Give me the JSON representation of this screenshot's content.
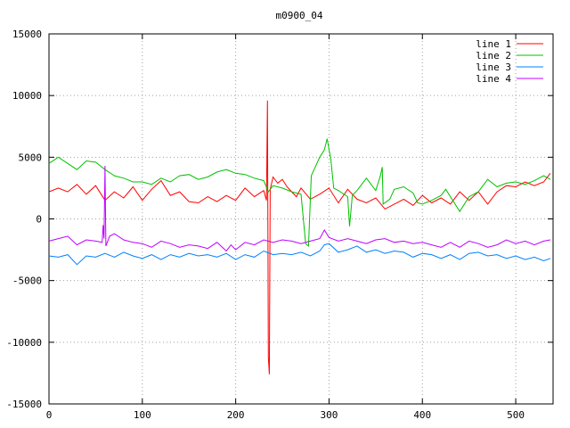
{
  "chart_data": {
    "type": "line",
    "title": "m0900_04",
    "xlabel": "",
    "ylabel": "",
    "xlim": [
      0,
      540
    ],
    "ylim": [
      -15000,
      15000
    ],
    "xticks": [
      0,
      100,
      200,
      300,
      400,
      500
    ],
    "yticks": [
      -15000,
      -10000,
      -5000,
      0,
      5000,
      10000,
      15000
    ],
    "grid": true,
    "legend_position": "top-right",
    "series": [
      {
        "name": "line 1",
        "color": "#ff0000",
        "points": [
          [
            0,
            2200
          ],
          [
            10,
            2500
          ],
          [
            20,
            2200
          ],
          [
            30,
            2800
          ],
          [
            40,
            2000
          ],
          [
            50,
            2700
          ],
          [
            60,
            1500
          ],
          [
            70,
            2200
          ],
          [
            80,
            1700
          ],
          [
            90,
            2600
          ],
          [
            100,
            1500
          ],
          [
            110,
            2400
          ],
          [
            120,
            3100
          ],
          [
            130,
            1900
          ],
          [
            140,
            2200
          ],
          [
            150,
            1400
          ],
          [
            160,
            1300
          ],
          [
            170,
            1800
          ],
          [
            180,
            1400
          ],
          [
            190,
            1900
          ],
          [
            200,
            1500
          ],
          [
            210,
            2500
          ],
          [
            220,
            1800
          ],
          [
            230,
            2300
          ],
          [
            233,
            1500
          ],
          [
            234,
            9600
          ],
          [
            235,
            -11200
          ],
          [
            236,
            -12600
          ],
          [
            237,
            2400
          ],
          [
            240,
            3400
          ],
          [
            245,
            2900
          ],
          [
            250,
            3200
          ],
          [
            255,
            2600
          ],
          [
            260,
            2200
          ],
          [
            265,
            1800
          ],
          [
            270,
            2500
          ],
          [
            280,
            1600
          ],
          [
            290,
            2000
          ],
          [
            300,
            2500
          ],
          [
            310,
            1300
          ],
          [
            320,
            2400
          ],
          [
            330,
            1600
          ],
          [
            340,
            1300
          ],
          [
            350,
            1700
          ],
          [
            360,
            800
          ],
          [
            370,
            1200
          ],
          [
            380,
            1600
          ],
          [
            390,
            1100
          ],
          [
            400,
            1900
          ],
          [
            410,
            1300
          ],
          [
            420,
            1700
          ],
          [
            430,
            1200
          ],
          [
            440,
            2200
          ],
          [
            450,
            1500
          ],
          [
            460,
            2200
          ],
          [
            470,
            1200
          ],
          [
            480,
            2200
          ],
          [
            490,
            2700
          ],
          [
            500,
            2600
          ],
          [
            510,
            3000
          ],
          [
            520,
            2700
          ],
          [
            530,
            3000
          ],
          [
            537,
            3700
          ]
        ]
      },
      {
        "name": "line 2",
        "color": "#00c000",
        "points": [
          [
            0,
            4500
          ],
          [
            10,
            5000
          ],
          [
            20,
            4500
          ],
          [
            30,
            4000
          ],
          [
            40,
            4700
          ],
          [
            50,
            4600
          ],
          [
            60,
            4000
          ],
          [
            70,
            3500
          ],
          [
            80,
            3300
          ],
          [
            90,
            3000
          ],
          [
            100,
            3000
          ],
          [
            110,
            2800
          ],
          [
            120,
            3300
          ],
          [
            130,
            3000
          ],
          [
            140,
            3500
          ],
          [
            150,
            3600
          ],
          [
            160,
            3200
          ],
          [
            170,
            3400
          ],
          [
            180,
            3800
          ],
          [
            190,
            4000
          ],
          [
            200,
            3700
          ],
          [
            210,
            3600
          ],
          [
            220,
            3300
          ],
          [
            230,
            3100
          ],
          [
            235,
            2200
          ],
          [
            240,
            2700
          ],
          [
            250,
            2500
          ],
          [
            260,
            2200
          ],
          [
            270,
            2000
          ],
          [
            275,
            -2000
          ],
          [
            278,
            -2200
          ],
          [
            281,
            3500
          ],
          [
            290,
            5000
          ],
          [
            295,
            5600
          ],
          [
            298,
            6500
          ],
          [
            302,
            4800
          ],
          [
            305,
            2500
          ],
          [
            310,
            2300
          ],
          [
            320,
            1800
          ],
          [
            322,
            -600
          ],
          [
            325,
            1900
          ],
          [
            330,
            2300
          ],
          [
            340,
            3300
          ],
          [
            350,
            2300
          ],
          [
            355,
            3500
          ],
          [
            357,
            4200
          ],
          [
            358,
            1200
          ],
          [
            365,
            1600
          ],
          [
            370,
            2400
          ],
          [
            380,
            2600
          ],
          [
            390,
            2100
          ],
          [
            395,
            1300
          ],
          [
            400,
            1200
          ],
          [
            410,
            1500
          ],
          [
            420,
            1900
          ],
          [
            425,
            2400
          ],
          [
            430,
            1800
          ],
          [
            440,
            600
          ],
          [
            450,
            1800
          ],
          [
            460,
            2200
          ],
          [
            470,
            3200
          ],
          [
            480,
            2600
          ],
          [
            490,
            2900
          ],
          [
            500,
            3000
          ],
          [
            510,
            2800
          ],
          [
            520,
            3100
          ],
          [
            530,
            3500
          ],
          [
            537,
            3200
          ]
        ]
      },
      {
        "name": "line 3",
        "color": "#0080ff",
        "points": [
          [
            0,
            -3000
          ],
          [
            10,
            -3100
          ],
          [
            20,
            -2900
          ],
          [
            30,
            -3700
          ],
          [
            40,
            -3000
          ],
          [
            50,
            -3100
          ],
          [
            60,
            -2800
          ],
          [
            70,
            -3100
          ],
          [
            80,
            -2700
          ],
          [
            90,
            -3000
          ],
          [
            100,
            -3200
          ],
          [
            110,
            -2900
          ],
          [
            120,
            -3300
          ],
          [
            130,
            -2900
          ],
          [
            140,
            -3100
          ],
          [
            150,
            -2800
          ],
          [
            160,
            -3000
          ],
          [
            170,
            -2900
          ],
          [
            180,
            -3100
          ],
          [
            190,
            -2800
          ],
          [
            200,
            -3300
          ],
          [
            210,
            -2900
          ],
          [
            220,
            -3100
          ],
          [
            230,
            -2600
          ],
          [
            240,
            -2900
          ],
          [
            250,
            -2800
          ],
          [
            260,
            -2900
          ],
          [
            270,
            -2700
          ],
          [
            280,
            -3000
          ],
          [
            290,
            -2600
          ],
          [
            295,
            -2100
          ],
          [
            300,
            -2000
          ],
          [
            310,
            -2700
          ],
          [
            320,
            -2500
          ],
          [
            330,
            -2200
          ],
          [
            340,
            -2700
          ],
          [
            350,
            -2500
          ],
          [
            360,
            -2800
          ],
          [
            370,
            -2600
          ],
          [
            380,
            -2700
          ],
          [
            390,
            -3100
          ],
          [
            400,
            -2800
          ],
          [
            410,
            -2900
          ],
          [
            420,
            -3200
          ],
          [
            430,
            -2900
          ],
          [
            440,
            -3300
          ],
          [
            450,
            -2800
          ],
          [
            460,
            -2700
          ],
          [
            470,
            -3000
          ],
          [
            480,
            -2900
          ],
          [
            490,
            -3200
          ],
          [
            500,
            -3000
          ],
          [
            510,
            -3300
          ],
          [
            520,
            -3100
          ],
          [
            530,
            -3400
          ],
          [
            537,
            -3200
          ]
        ]
      },
      {
        "name": "line 4",
        "color": "#c000ff",
        "points": [
          [
            0,
            -1800
          ],
          [
            10,
            -1600
          ],
          [
            20,
            -1400
          ],
          [
            30,
            -2100
          ],
          [
            40,
            -1700
          ],
          [
            50,
            -1800
          ],
          [
            57,
            -1900
          ],
          [
            58,
            -500
          ],
          [
            59,
            -1600
          ],
          [
            60,
            4300
          ],
          [
            61,
            -2200
          ],
          [
            65,
            -1400
          ],
          [
            70,
            -1200
          ],
          [
            80,
            -1700
          ],
          [
            90,
            -1900
          ],
          [
            100,
            -2000
          ],
          [
            110,
            -2300
          ],
          [
            120,
            -1800
          ],
          [
            130,
            -2000
          ],
          [
            140,
            -2300
          ],
          [
            150,
            -2100
          ],
          [
            160,
            -2200
          ],
          [
            170,
            -2400
          ],
          [
            180,
            -1900
          ],
          [
            190,
            -2600
          ],
          [
            195,
            -2100
          ],
          [
            200,
            -2500
          ],
          [
            210,
            -1900
          ],
          [
            220,
            -2100
          ],
          [
            230,
            -1700
          ],
          [
            240,
            -1900
          ],
          [
            250,
            -1700
          ],
          [
            260,
            -1800
          ],
          [
            270,
            -2000
          ],
          [
            280,
            -1800
          ],
          [
            290,
            -1600
          ],
          [
            295,
            -900
          ],
          [
            300,
            -1500
          ],
          [
            310,
            -1800
          ],
          [
            320,
            -1600
          ],
          [
            330,
            -1800
          ],
          [
            340,
            -2000
          ],
          [
            350,
            -1700
          ],
          [
            360,
            -1600
          ],
          [
            370,
            -1900
          ],
          [
            380,
            -1800
          ],
          [
            390,
            -2000
          ],
          [
            400,
            -1900
          ],
          [
            410,
            -2100
          ],
          [
            420,
            -2300
          ],
          [
            430,
            -1900
          ],
          [
            440,
            -2300
          ],
          [
            450,
            -1800
          ],
          [
            460,
            -2000
          ],
          [
            470,
            -2300
          ],
          [
            480,
            -2100
          ],
          [
            490,
            -1700
          ],
          [
            500,
            -2000
          ],
          [
            510,
            -1800
          ],
          [
            520,
            -2100
          ],
          [
            530,
            -1800
          ],
          [
            537,
            -1700
          ]
        ]
      }
    ]
  }
}
